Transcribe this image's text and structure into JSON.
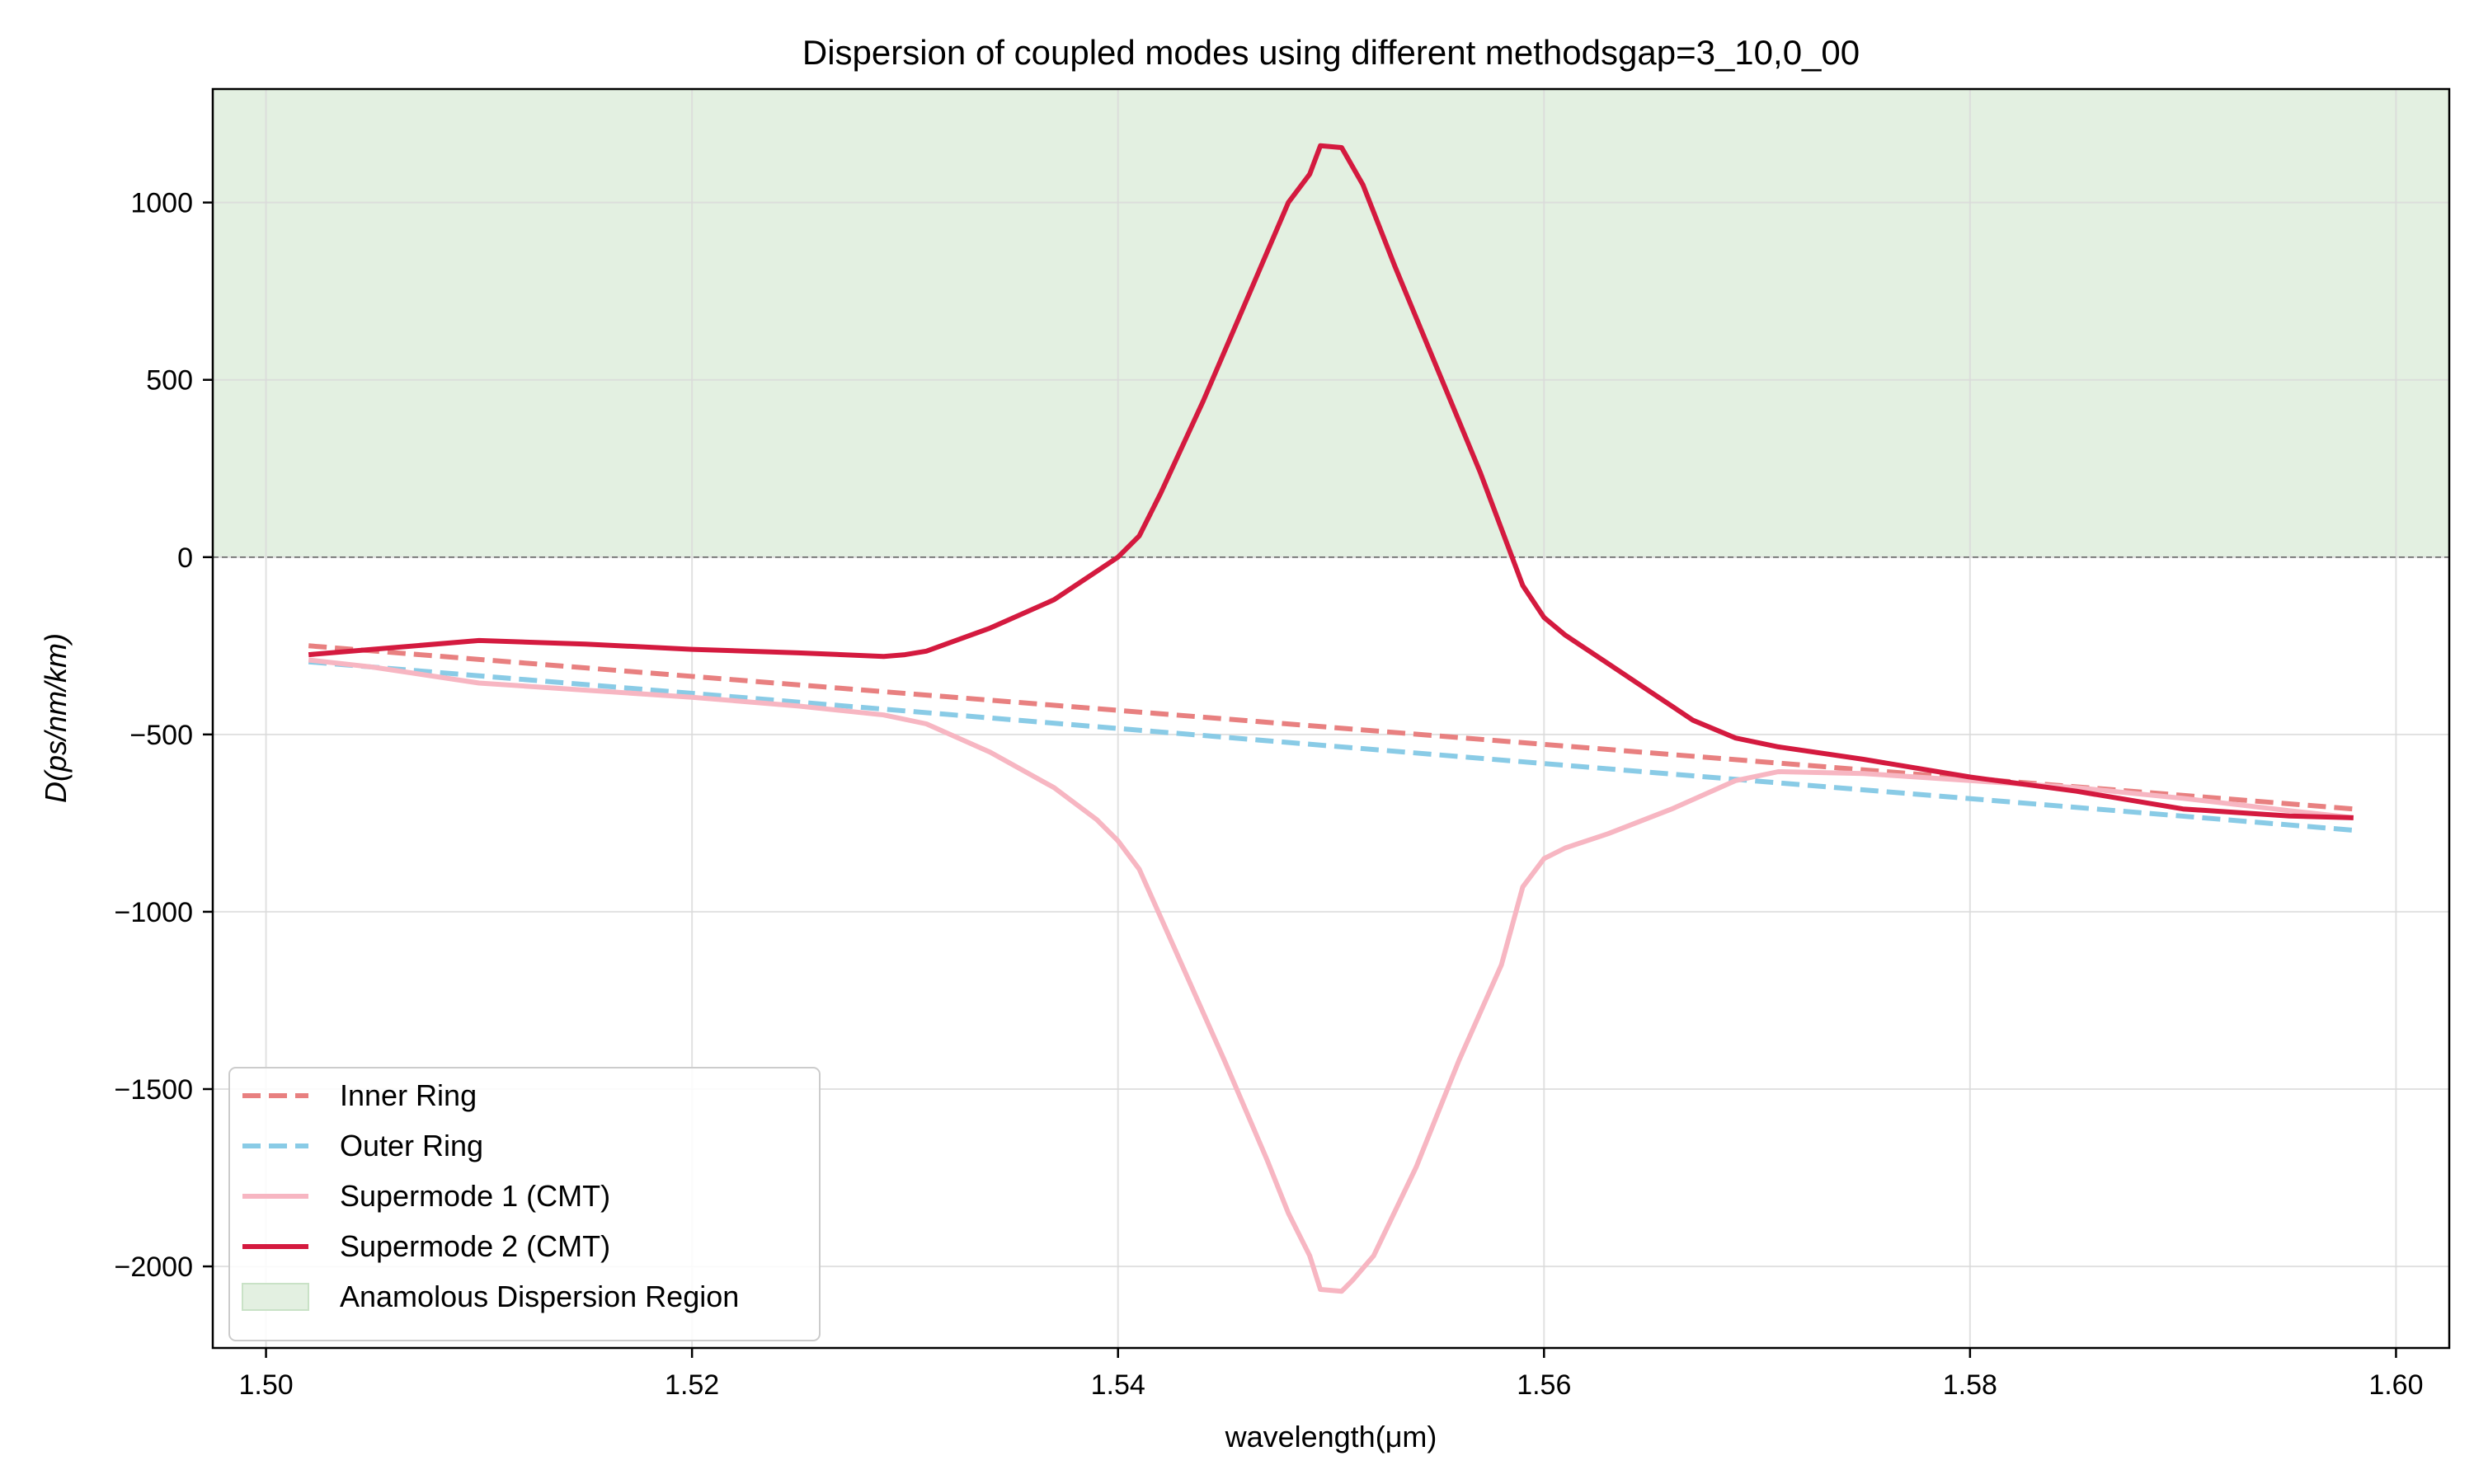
{
  "chart_data": {
    "type": "line",
    "title": "Dispersion of coupled modes using different methodsgap=3_10,0_00",
    "xlabel": "wavelength(μm)",
    "ylabel": "D(ps/nm/km)",
    "xlim": [
      1.4975,
      1.6025
    ],
    "ylim": [
      -2230,
      1320
    ],
    "grid": true,
    "legend_position": "lower-left",
    "x_ticks": [
      1.5,
      1.52,
      1.54,
      1.56,
      1.58,
      1.6
    ],
    "x_tick_labels": [
      "1.50",
      "1.52",
      "1.54",
      "1.56",
      "1.58",
      "1.60"
    ],
    "y_ticks": [
      -2000,
      -1500,
      -1000,
      -500,
      0,
      500,
      1000
    ],
    "y_tick_labels": [
      "−2000",
      "−1500",
      "−1000",
      "−500",
      "0",
      "500",
      "1000"
    ],
    "shaded_region": {
      "name": "Anamolous Dispersion Region",
      "y_from": 0,
      "color": "#e3f0e1",
      "edge_color": "#c9e2c6"
    },
    "reference_line": {
      "y": 0,
      "color": "#666666",
      "style": "dashed"
    },
    "series": [
      {
        "name": "Inner Ring",
        "color": "#e88080",
        "style": "dashed",
        "points": [
          [
            1.502,
            -250
          ],
          [
            1.598,
            -710
          ]
        ]
      },
      {
        "name": "Outer Ring",
        "color": "#89cbe6",
        "style": "dashed",
        "points": [
          [
            1.502,
            -295
          ],
          [
            1.598,
            -770
          ]
        ]
      },
      {
        "name": "Supermode 1 (CMT)",
        "color": "#f7b6c2",
        "style": "solid",
        "points": [
          [
            1.502,
            -290
          ],
          [
            1.505,
            -310
          ],
          [
            1.51,
            -355
          ],
          [
            1.515,
            -375
          ],
          [
            1.52,
            -395
          ],
          [
            1.525,
            -420
          ],
          [
            1.529,
            -445
          ],
          [
            1.531,
            -470
          ],
          [
            1.534,
            -550
          ],
          [
            1.537,
            -650
          ],
          [
            1.539,
            -740
          ],
          [
            1.54,
            -800
          ],
          [
            1.541,
            -880
          ],
          [
            1.543,
            -1150
          ],
          [
            1.545,
            -1420
          ],
          [
            1.547,
            -1700
          ],
          [
            1.548,
            -1850
          ],
          [
            1.549,
            -1970
          ],
          [
            1.5495,
            -2065
          ],
          [
            1.5505,
            -2070
          ],
          [
            1.551,
            -2040
          ],
          [
            1.552,
            -1970
          ],
          [
            1.554,
            -1720
          ],
          [
            1.556,
            -1420
          ],
          [
            1.558,
            -1150
          ],
          [
            1.559,
            -930
          ],
          [
            1.56,
            -850
          ],
          [
            1.561,
            -820
          ],
          [
            1.563,
            -780
          ],
          [
            1.566,
            -710
          ],
          [
            1.569,
            -630
          ],
          [
            1.571,
            -605
          ],
          [
            1.575,
            -610
          ],
          [
            1.58,
            -630
          ],
          [
            1.585,
            -650
          ],
          [
            1.59,
            -680
          ],
          [
            1.595,
            -715
          ],
          [
            1.598,
            -735
          ]
        ]
      },
      {
        "name": "Supermode 2 (CMT)",
        "color": "#d41a3f",
        "style": "solid",
        "points": [
          [
            1.502,
            -275
          ],
          [
            1.505,
            -260
          ],
          [
            1.51,
            -235
          ],
          [
            1.515,
            -245
          ],
          [
            1.52,
            -260
          ],
          [
            1.525,
            -270
          ],
          [
            1.529,
            -280
          ],
          [
            1.53,
            -275
          ],
          [
            1.531,
            -265
          ],
          [
            1.534,
            -200
          ],
          [
            1.537,
            -120
          ],
          [
            1.539,
            -40
          ],
          [
            1.54,
            0
          ],
          [
            1.541,
            60
          ],
          [
            1.542,
            180
          ],
          [
            1.544,
            440
          ],
          [
            1.546,
            720
          ],
          [
            1.548,
            1000
          ],
          [
            1.549,
            1080
          ],
          [
            1.5495,
            1160
          ],
          [
            1.5505,
            1155
          ],
          [
            1.5515,
            1050
          ],
          [
            1.553,
            820
          ],
          [
            1.555,
            530
          ],
          [
            1.557,
            240
          ],
          [
            1.559,
            -80
          ],
          [
            1.56,
            -170
          ],
          [
            1.561,
            -220
          ],
          [
            1.563,
            -300
          ],
          [
            1.565,
            -380
          ],
          [
            1.567,
            -460
          ],
          [
            1.569,
            -510
          ],
          [
            1.571,
            -535
          ],
          [
            1.575,
            -570
          ],
          [
            1.58,
            -620
          ],
          [
            1.585,
            -660
          ],
          [
            1.59,
            -710
          ],
          [
            1.595,
            -730
          ],
          [
            1.598,
            -735
          ]
        ]
      }
    ]
  }
}
